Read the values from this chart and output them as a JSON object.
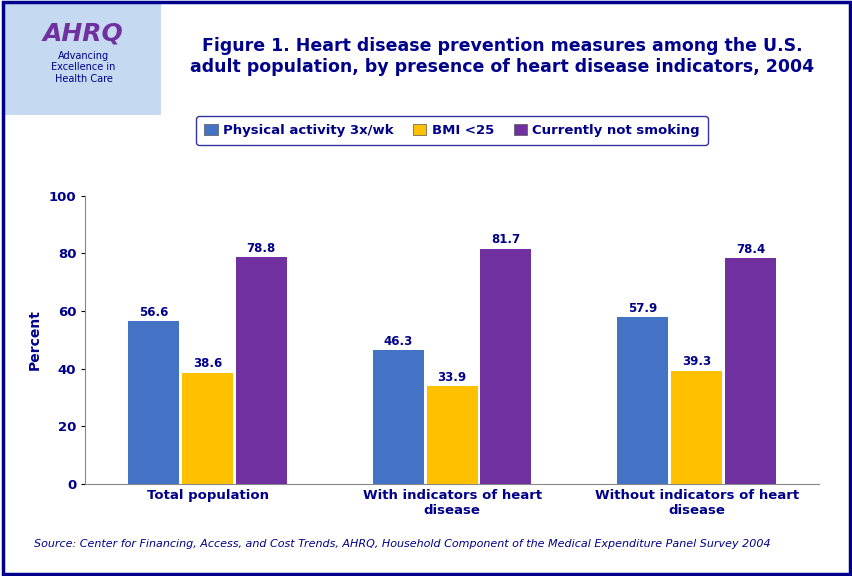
{
  "title_line1": "Figure 1. Heart disease prevention measures among the U.S.",
  "title_line2": "adult population, by presence of heart disease indicators, 2004",
  "categories": [
    "Total population",
    "With indicators of heart\ndisease",
    "Without indicators of heart\ndisease"
  ],
  "series": [
    {
      "name": "Physical activity 3x/wk",
      "color": "#4472C4",
      "values": [
        56.6,
        46.3,
        57.9
      ]
    },
    {
      "name": "BMI <25",
      "color": "#FFC000",
      "values": [
        38.6,
        33.9,
        39.3
      ]
    },
    {
      "name": "Currently not smoking",
      "color": "#7030A0",
      "values": [
        78.8,
        81.7,
        78.4
      ]
    }
  ],
  "ylabel": "Percent",
  "ylim": [
    0,
    100
  ],
  "yticks": [
    0,
    20,
    40,
    60,
    80,
    100
  ],
  "bar_width": 0.22,
  "source_text": "Source: Center for Financing, Access, and Cost Trends, AHRQ, Household Component of the Medical Expenditure Panel Survey 2004",
  "outer_bg": "#FFFFFF",
  "outer_border_color": "#00008B",
  "header_bg": "#FFFFFF",
  "header_logo_bg": "#B8CCE4",
  "divider_dark": "#00008B",
  "divider_light": "#4472C4",
  "chart_bg": "#FFFFFF",
  "title_color": "#00008B",
  "axis_label_color": "#00008B",
  "tick_label_color": "#00008B",
  "bar_value_color": "#00008B",
  "source_color": "#00008B",
  "legend_box_color": "#00008B",
  "title_fontsize": 12.5,
  "legend_fontsize": 9.5,
  "ylabel_fontsize": 10,
  "tick_fontsize": 9.5,
  "value_fontsize": 8.5,
  "source_fontsize": 8
}
